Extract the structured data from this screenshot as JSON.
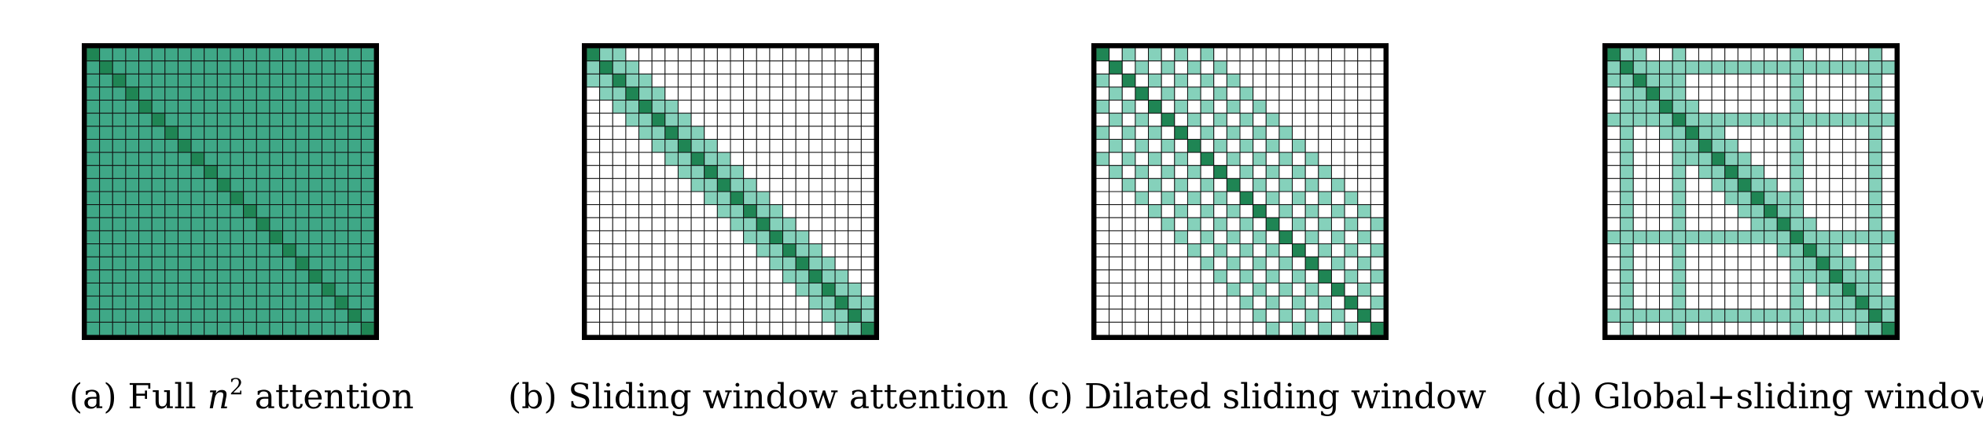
{
  "colors": {
    "full": "#3fa887",
    "window": "#85d1bb",
    "diagonal": "#1f8554",
    "empty": "#ffffff",
    "grid": "#111111",
    "border": "#000000"
  },
  "grid_size": 22,
  "panels": [
    {
      "id": "a",
      "caption_prefix": "(a) Full ",
      "caption_math": "n",
      "caption_sup": "2",
      "caption_suffix": " attention",
      "pattern": "full"
    },
    {
      "id": "b",
      "caption": "(b) Sliding window attention",
      "pattern": "sliding",
      "window_half_width": 2
    },
    {
      "id": "c",
      "caption": "(c) Dilated sliding window",
      "pattern": "dilated",
      "dilation_offsets": [
        2,
        4,
        6,
        8
      ]
    },
    {
      "id": "d",
      "caption": "(d) Global+sliding window",
      "pattern": "global",
      "window_half_width": 2,
      "global_tokens": [
        1,
        5,
        14,
        20
      ]
    }
  ]
}
